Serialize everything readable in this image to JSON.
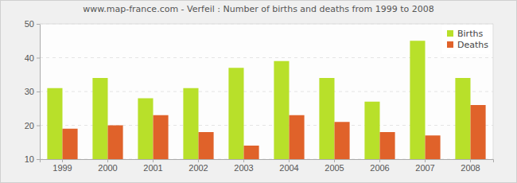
{
  "chart_data": {
    "type": "bar",
    "title": "www.map-france.com - Verfeil : Number of births and deaths from 1999 to 2008",
    "categories": [
      "1999",
      "2000",
      "2001",
      "2002",
      "2003",
      "2004",
      "2005",
      "2006",
      "2007",
      "2008"
    ],
    "series": [
      {
        "name": "Births",
        "color": "#b8e02a",
        "values": [
          31,
          34,
          28,
          31,
          37,
          39,
          34,
          27,
          45,
          34
        ]
      },
      {
        "name": "Deaths",
        "color": "#e0622a",
        "values": [
          19,
          20,
          23,
          18,
          14,
          23,
          21,
          18,
          17,
          26
        ]
      }
    ],
    "ylim": [
      10,
      50
    ],
    "yticks": [
      10,
      20,
      30,
      40,
      50
    ],
    "grid": true,
    "legend": "top-right"
  }
}
